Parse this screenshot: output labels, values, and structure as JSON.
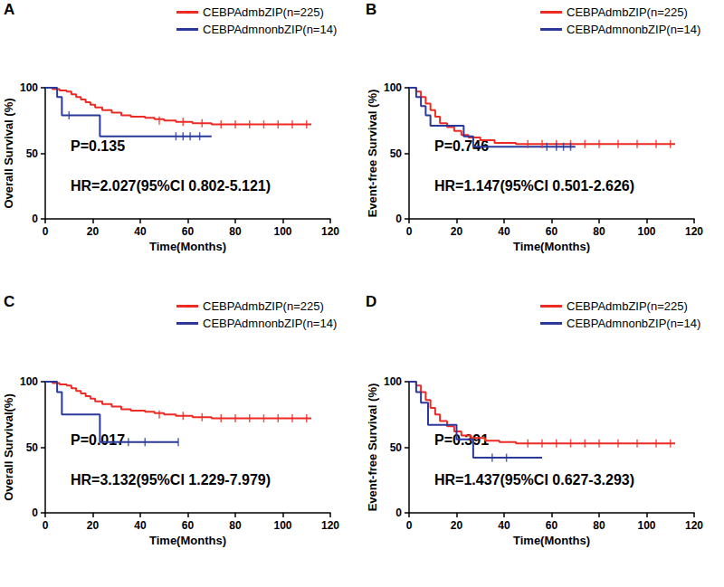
{
  "chart_data": [
    {
      "type": "line",
      "panel": "A",
      "xlabel": "Time(Months)",
      "ylabel": "Overall Survival (%)",
      "xlim": [
        0,
        120
      ],
      "xticks": [
        0,
        20,
        40,
        60,
        80,
        100,
        120
      ],
      "ylim": [
        0,
        100
      ],
      "yticks": [
        0,
        50,
        100
      ],
      "grid": false,
      "legend": "upper right",
      "line_style": "step",
      "annotations": [
        "P=0.135",
        "HR=2.027(95%CI 0.802-5.121)"
      ],
      "series": [
        {
          "name": "CEBPAdmbZIP(n=225)",
          "color": "#ee2a24",
          "x": [
            0,
            3,
            6,
            9,
            11,
            13,
            15,
            17,
            19,
            21,
            24,
            28,
            32,
            36,
            42,
            46,
            50,
            55,
            62,
            70,
            112
          ],
          "values": [
            100,
            99,
            98,
            97,
            95,
            93,
            91,
            89,
            87,
            85,
            83,
            81,
            79,
            78,
            77,
            76,
            75,
            74,
            73,
            72,
            72
          ],
          "censored": [
            [
              48,
              75
            ],
            [
              58,
              74
            ],
            [
              66,
              73
            ],
            [
              74,
              72
            ],
            [
              80,
              72
            ],
            [
              86,
              72
            ],
            [
              92,
              72
            ],
            [
              98,
              72
            ],
            [
              104,
              72
            ],
            [
              110,
              72
            ]
          ]
        },
        {
          "name": "CEBPAdmnonbZIP(n=14)",
          "color": "#2b3a9a",
          "x": [
            0,
            5,
            7,
            23,
            70
          ],
          "values": [
            100,
            93,
            79,
            63,
            63
          ],
          "censored": [
            [
              10,
              79
            ],
            [
              55,
              63
            ],
            [
              58,
              63
            ],
            [
              61,
              63
            ],
            [
              65,
              63
            ]
          ]
        }
      ]
    },
    {
      "type": "line",
      "panel": "B",
      "xlabel": "Time(Months)",
      "ylabel": "Event-free Survival (%)",
      "xlim": [
        0,
        120
      ],
      "xticks": [
        0,
        20,
        40,
        60,
        80,
        100,
        120
      ],
      "ylim": [
        0,
        100
      ],
      "yticks": [
        0,
        50,
        100
      ],
      "grid": false,
      "legend": "upper right",
      "line_style": "step",
      "annotations": [
        "P=0.746",
        "HR=1.147(95%CI 0.501-2.626)"
      ],
      "series": [
        {
          "name": "CEBPAdmbZIP(n=225)",
          "color": "#ee2a24",
          "x": [
            0,
            3,
            5,
            7,
            9,
            11,
            13,
            16,
            19,
            22,
            25,
            30,
            36,
            45,
            112
          ],
          "values": [
            100,
            97,
            93,
            88,
            83,
            78,
            73,
            70,
            67,
            64,
            62,
            60,
            58,
            57,
            57
          ],
          "censored": [
            [
              50,
              57
            ],
            [
              56,
              57
            ],
            [
              62,
              57
            ],
            [
              68,
              57
            ],
            [
              74,
              57
            ],
            [
              80,
              57
            ],
            [
              88,
              57
            ],
            [
              96,
              57
            ],
            [
              104,
              57
            ],
            [
              110,
              57
            ]
          ]
        },
        {
          "name": "CEBPAdmnonbZIP(n=14)",
          "color": "#2b3a9a",
          "x": [
            0,
            3,
            5,
            7,
            9,
            23,
            27,
            70
          ],
          "values": [
            100,
            93,
            86,
            79,
            71,
            63,
            55,
            55
          ],
          "censored": [
            [
              58,
              55
            ],
            [
              62,
              55
            ],
            [
              65,
              55
            ],
            [
              68,
              55
            ]
          ]
        }
      ]
    },
    {
      "type": "line",
      "panel": "C",
      "xlabel": "Time(Months)",
      "ylabel": "Overall Survival(%)",
      "xlim": [
        0,
        120
      ],
      "xticks": [
        0,
        20,
        40,
        60,
        80,
        100,
        120
      ],
      "ylim": [
        0,
        100
      ],
      "yticks": [
        0,
        50,
        100
      ],
      "grid": false,
      "legend": "upper right",
      "line_style": "step",
      "annotations": [
        "P=0.017",
        "HR=3.132(95%CI 1.229-7.979)"
      ],
      "series": [
        {
          "name": "CEBPAdmbZIP(n=225)",
          "color": "#ee2a24",
          "x": [
            0,
            3,
            6,
            9,
            11,
            13,
            15,
            17,
            19,
            21,
            24,
            28,
            32,
            36,
            42,
            46,
            50,
            55,
            62,
            70,
            112
          ],
          "values": [
            100,
            99,
            98,
            97,
            95,
            93,
            91,
            89,
            87,
            85,
            83,
            81,
            79,
            78,
            77,
            76,
            75,
            74,
            73,
            72,
            72
          ],
          "censored": [
            [
              48,
              75
            ],
            [
              58,
              74
            ],
            [
              66,
              73
            ],
            [
              74,
              72
            ],
            [
              80,
              72
            ],
            [
              86,
              72
            ],
            [
              92,
              72
            ],
            [
              98,
              72
            ],
            [
              104,
              72
            ],
            [
              110,
              72
            ]
          ]
        },
        {
          "name": "CEBPAdmnonbZIP(n=14)",
          "color": "#2b3a9a",
          "x": [
            0,
            5,
            7,
            23,
            56
          ],
          "values": [
            100,
            92,
            75,
            54,
            54
          ],
          "censored": [
            [
              35,
              54
            ],
            [
              42,
              54
            ],
            [
              56,
              54
            ]
          ]
        }
      ]
    },
    {
      "type": "line",
      "panel": "D",
      "xlabel": "Time(Months)",
      "ylabel": "Event-free Survival (%)",
      "xlim": [
        0,
        120
      ],
      "xticks": [
        0,
        20,
        40,
        60,
        80,
        100,
        120
      ],
      "ylim": [
        0,
        100
      ],
      "yticks": [
        0,
        50,
        100
      ],
      "grid": false,
      "legend": "upper right",
      "line_style": "step",
      "annotations": [
        "P=0.391",
        "HR=1.437(95%CI 0.627-3.293)"
      ],
      "series": [
        {
          "name": "CEBPAdmbZIP(n=225)",
          "color": "#ee2a24",
          "x": [
            0,
            3,
            5,
            7,
            9,
            11,
            13,
            16,
            19,
            22,
            26,
            32,
            38,
            45,
            112
          ],
          "values": [
            100,
            97,
            92,
            86,
            80,
            75,
            70,
            66,
            62,
            59,
            57,
            55,
            54,
            53,
            53
          ],
          "censored": [
            [
              50,
              53
            ],
            [
              56,
              53
            ],
            [
              62,
              53
            ],
            [
              68,
              53
            ],
            [
              74,
              53
            ],
            [
              80,
              53
            ],
            [
              88,
              53
            ],
            [
              96,
              53
            ],
            [
              104,
              53
            ],
            [
              110,
              53
            ]
          ]
        },
        {
          "name": "CEBPAdmnonbZIP(n=14)",
          "color": "#2b3a9a",
          "x": [
            0,
            3,
            5,
            8,
            20,
            27,
            56
          ],
          "values": [
            100,
            92,
            84,
            67,
            56,
            42,
            42
          ],
          "censored": [
            [
              35,
              42
            ],
            [
              41,
              42
            ]
          ]
        }
      ]
    }
  ]
}
